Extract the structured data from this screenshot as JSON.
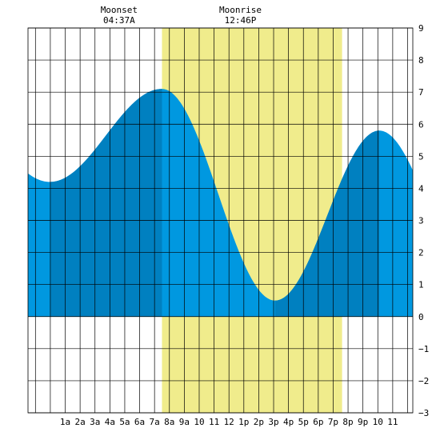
{
  "chart_data": {
    "type": "area",
    "title": "",
    "xlabel": "",
    "ylabel": "",
    "ylim": [
      -3,
      9
    ],
    "xlim": [
      -1.5,
      24.35
    ],
    "y_ticks": [
      -3,
      -2,
      -1,
      0,
      1,
      2,
      3,
      4,
      5,
      6,
      7,
      8,
      9
    ],
    "x_tick_labels": [
      "1a",
      "2a",
      "3a",
      "4a",
      "5a",
      "6a",
      "7a",
      "8a",
      "9a",
      "10",
      "11",
      "12",
      "1p",
      "2p",
      "3p",
      "4p",
      "5p",
      "6p",
      "7p",
      "8p",
      "9p",
      "10",
      "11"
    ],
    "grid": true,
    "daylight_band": {
      "start_hour": 7.5,
      "end_hour": 19.6,
      "color": "#f0ec8c"
    },
    "tide_extremes": [
      {
        "hour": -0.03,
        "height": 4.2,
        "type": "low"
      },
      {
        "hour": 7.5,
        "height": 7.1,
        "type": "high"
      },
      {
        "hour": 15.1,
        "height": 0.5,
        "type": "low"
      },
      {
        "hour": 22.1,
        "height": 5.8,
        "type": "high"
      }
    ],
    "dark_shading_ranges": [
      [
        0,
        7.5
      ],
      [
        15.1,
        22.1
      ]
    ],
    "moon_events": [
      {
        "label": "Moonset",
        "time": "04:37A",
        "hour": 4.62
      },
      {
        "label": "Moonrise",
        "time": "12:46P",
        "hour": 12.77
      }
    ],
    "colors": {
      "tide_light": "#0098e0",
      "tide_dark": "#0080c0",
      "grid": "#000000"
    }
  }
}
